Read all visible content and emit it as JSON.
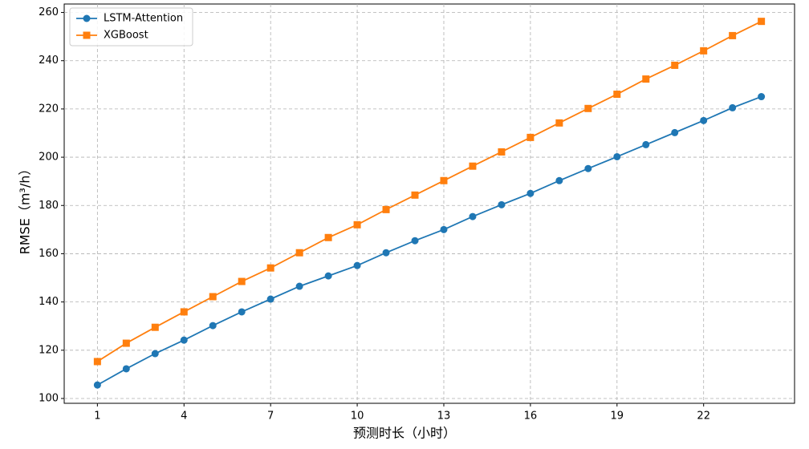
{
  "chart_data": {
    "type": "line",
    "x_label": "预测时长（小时）",
    "y_label": "RMSE（m³/h）",
    "x": [
      1,
      2,
      3,
      4,
      5,
      6,
      7,
      8,
      9,
      10,
      11,
      12,
      13,
      14,
      15,
      16,
      17,
      18,
      19,
      20,
      21,
      22,
      23,
      24
    ],
    "series": [
      {
        "name": "LSTM-Attention",
        "color": "#1f77b4",
        "marker": "circle",
        "values": [
          105.6,
          112.3,
          118.6,
          124.2,
          130.2,
          135.9,
          141.2,
          146.5,
          150.8,
          155.1,
          160.4,
          165.4,
          170.0,
          175.4,
          180.3,
          185.0,
          190.3,
          195.3,
          200.2,
          205.2,
          210.2,
          215.2,
          220.5,
          225.1
        ]
      },
      {
        "name": "XGBoost",
        "color": "#ff7f0e",
        "marker": "square",
        "values": [
          115.3,
          122.9,
          129.5,
          135.9,
          142.2,
          148.5,
          154.1,
          160.4,
          166.7,
          172.0,
          178.3,
          184.3,
          190.3,
          196.3,
          202.2,
          208.2,
          214.2,
          220.2,
          226.1,
          232.4,
          238.1,
          244.1,
          250.4,
          256.3
        ]
      }
    ],
    "xlim": [
      -0.15,
      25.15
    ],
    "xticks": [
      1,
      4,
      7,
      10,
      13,
      16,
      19,
      22
    ],
    "ylim": [
      98,
      263.5
    ],
    "yticks": [
      100,
      120,
      140,
      160,
      180,
      200,
      220,
      240,
      260
    ],
    "grid": true,
    "legend": "upper-left"
  }
}
